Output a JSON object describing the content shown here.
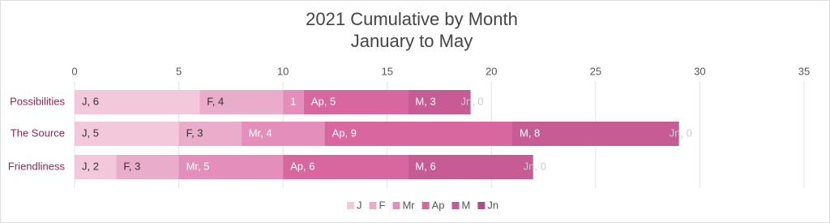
{
  "chart_data": {
    "type": "stacked-barh",
    "title": "2021 Cumulative by Month",
    "subtitle": "January to May",
    "categories": [
      "Possibilities",
      "The Source",
      "Friendliness"
    ],
    "series": [
      {
        "name": "J",
        "color": "#f2c8da",
        "values": [
          6,
          5,
          2
        ],
        "value_labels": [
          "J, 6",
          "J, 5",
          "J, 2"
        ]
      },
      {
        "name": "F",
        "color": "#eaaccb",
        "values": [
          4,
          3,
          3
        ],
        "value_labels": [
          "F, 4",
          "F, 3",
          "F, 3"
        ]
      },
      {
        "name": "Mr",
        "color": "#e48fbb",
        "values": [
          1,
          4,
          5
        ],
        "value_labels": [
          "1",
          "Mr, 4",
          "Mr, 5"
        ]
      },
      {
        "name": "Ap",
        "color": "#d8679f",
        "values": [
          5,
          9,
          6
        ],
        "value_labels": [
          "Ap, 5",
          "Ap, 9",
          "Ap, 6"
        ]
      },
      {
        "name": "M",
        "color": "#c65c93",
        "values": [
          3,
          8,
          6
        ],
        "value_labels": [
          "M, 3",
          "M, 8",
          "M, 6"
        ]
      },
      {
        "name": "Jn",
        "color": "#b84a83",
        "values": [
          0,
          0,
          0
        ],
        "value_labels": [
          "Jn, 0",
          "Jn, 0",
          "Jn, 0"
        ]
      }
    ],
    "xlim": [
      0,
      35
    ],
    "xticks": [
      0,
      5,
      10,
      15,
      20,
      25,
      30,
      35
    ],
    "grid": true,
    "legend": "bottom"
  }
}
